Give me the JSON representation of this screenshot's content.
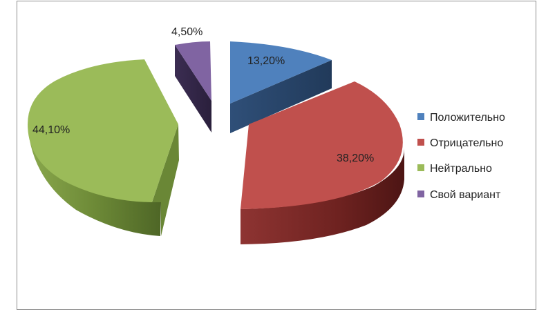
{
  "chart_data": {
    "type": "pie",
    "style": "3d-exploded",
    "categories": [
      "Положительно",
      "Отрицательно",
      "Нейтрально",
      "Свой вариант"
    ],
    "values": [
      13.2,
      38.2,
      44.1,
      4.5
    ],
    "value_labels": [
      "13,20%",
      "38,20%",
      "44,10%",
      "4,50%"
    ],
    "colors": [
      "#4f81bd",
      "#c0504d",
      "#9bbb59",
      "#8064a2"
    ],
    "legend_position": "right"
  }
}
